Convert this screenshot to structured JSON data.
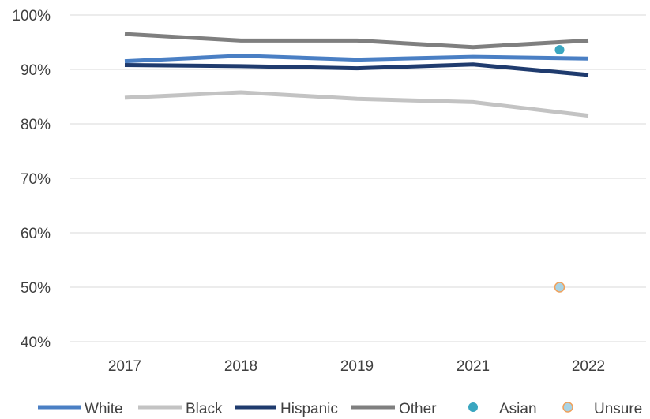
{
  "chart_data": {
    "type": "line",
    "categories": [
      "2017",
      "2018",
      "2019",
      "2021",
      "2022"
    ],
    "ylim": [
      40,
      100
    ],
    "y_ticks": [
      "40%",
      "50%",
      "60%",
      "70%",
      "80%",
      "90%",
      "100%"
    ],
    "grid": true,
    "legend_placement": "bottom",
    "series": [
      {
        "name": "White",
        "type": "line",
        "color": "#4a7fc4",
        "values": [
          91.5,
          92.5,
          91.8,
          92.3,
          92.0
        ]
      },
      {
        "name": "Black",
        "type": "line",
        "color": "#c3c3c3",
        "values": [
          84.8,
          85.8,
          84.6,
          84.0,
          81.5
        ]
      },
      {
        "name": "Hispanic",
        "type": "line",
        "color": "#1f3b6e",
        "values": [
          90.8,
          90.6,
          90.2,
          90.9,
          89.0
        ]
      },
      {
        "name": "Other",
        "type": "line",
        "color": "#7f7f7f",
        "values": [
          96.5,
          95.3,
          95.3,
          94.1,
          95.3
        ]
      },
      {
        "name": "Asian",
        "type": "marker",
        "color": "#3aa6c0",
        "point": {
          "x": 3.75,
          "y": 93.6
        }
      },
      {
        "name": "Unsure",
        "type": "marker",
        "color": "#a9d3e4",
        "stroke": "#f0a05a",
        "point": {
          "x": 3.75,
          "y": 50.0
        }
      }
    ]
  }
}
